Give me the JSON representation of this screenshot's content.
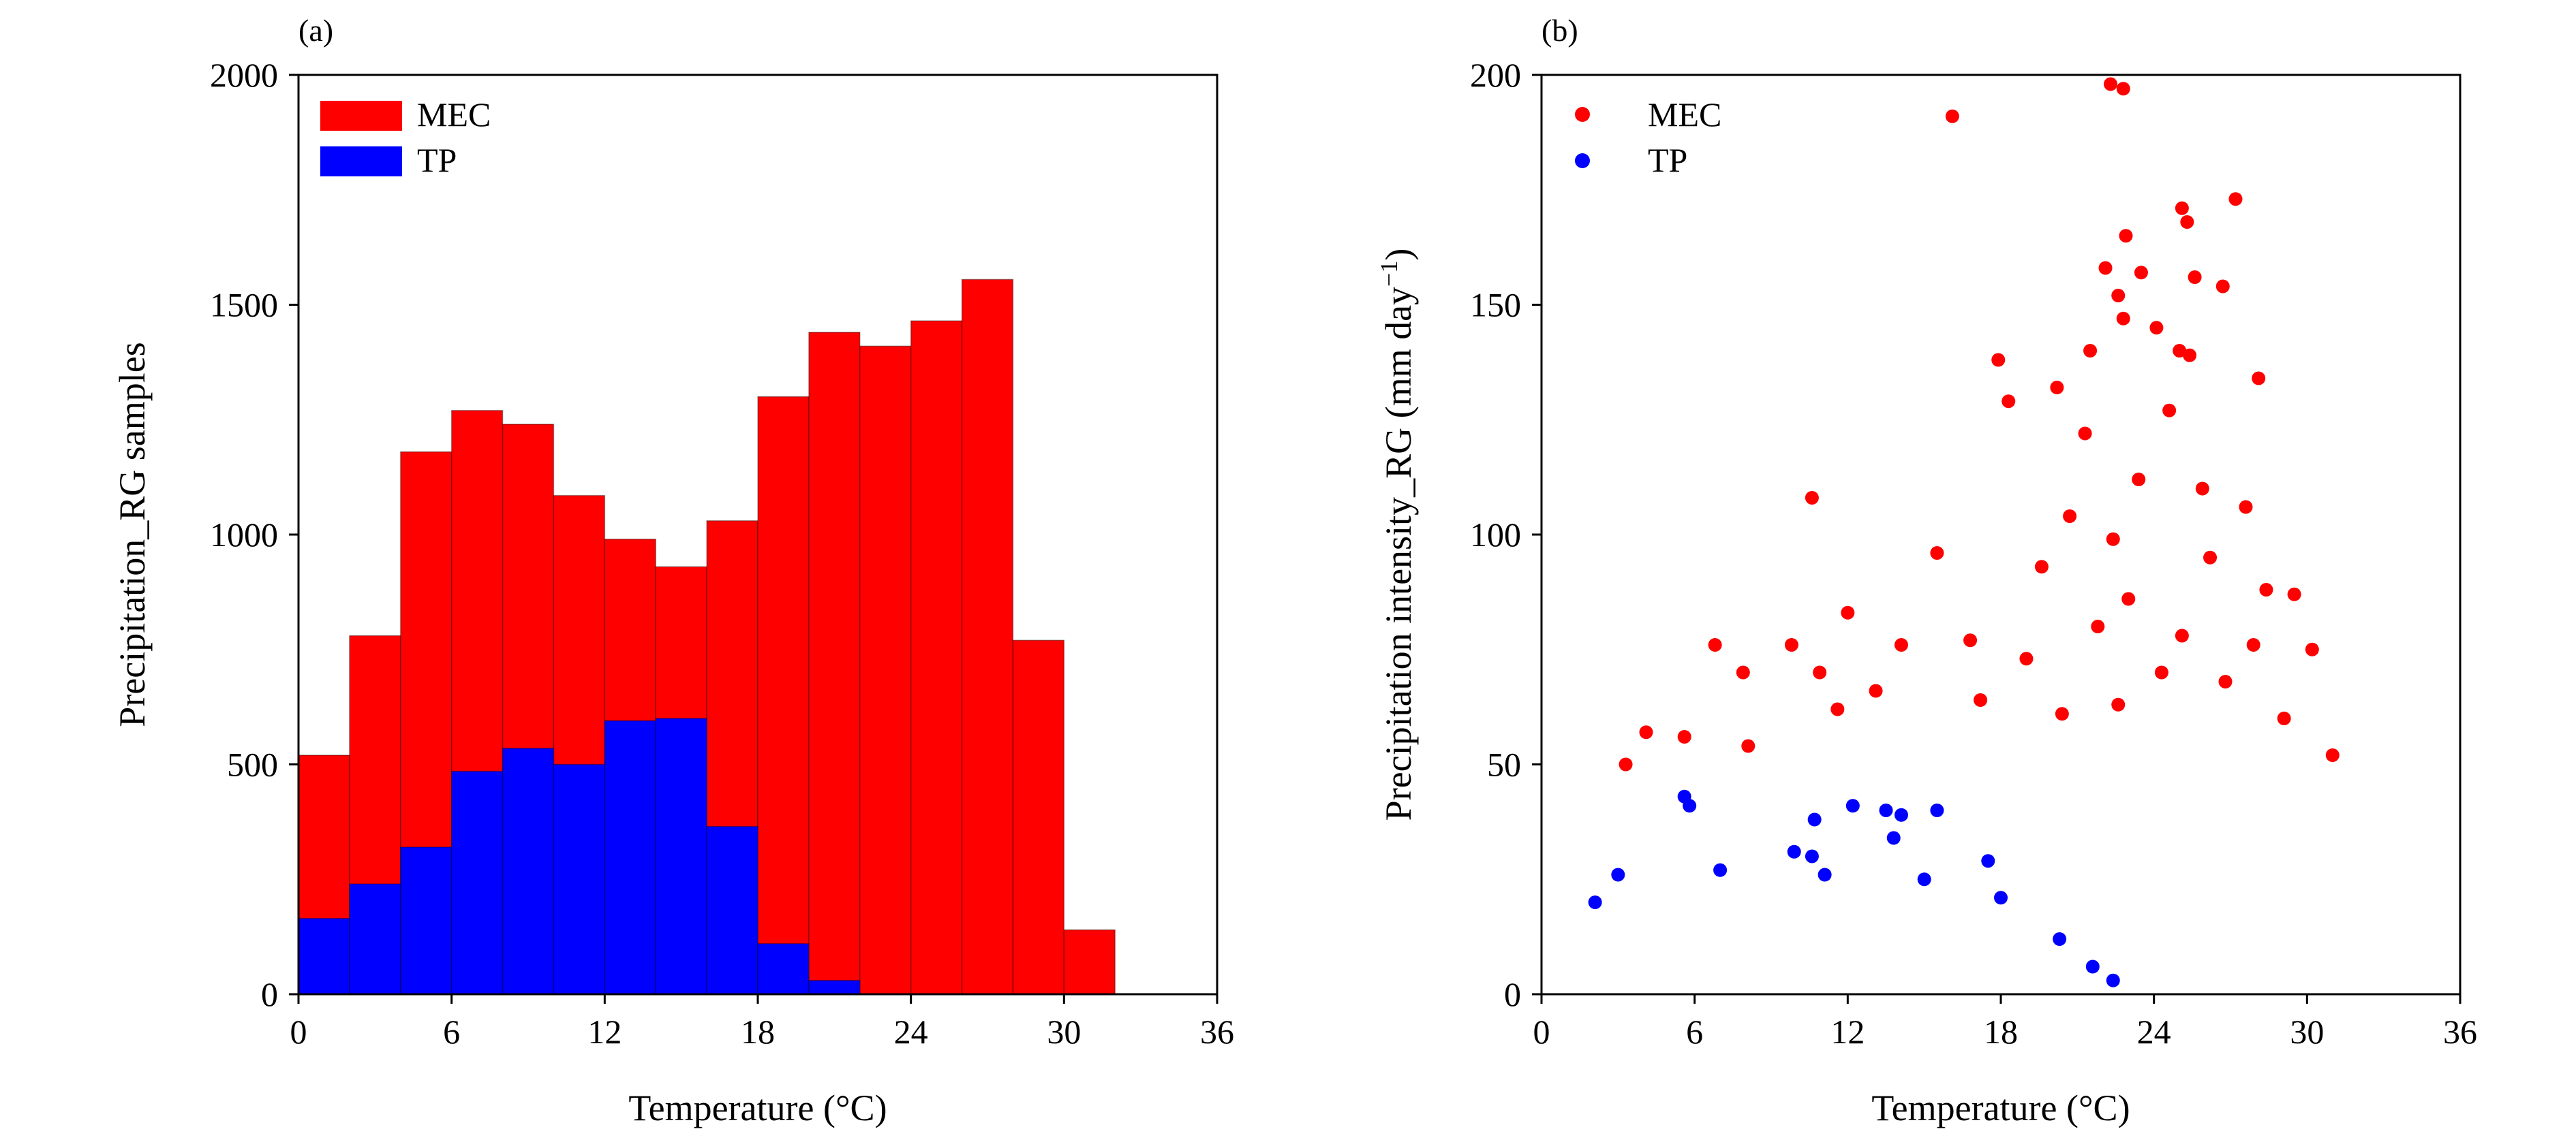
{
  "chart_data": [
    {
      "type": "bar",
      "panel_label": "(a)",
      "xlabel": "Temperature (°C)",
      "ylabel": "Precipitation_RG samples",
      "xlim": [
        0,
        36
      ],
      "ylim": [
        0,
        2000
      ],
      "xticks": [
        0,
        6,
        12,
        18,
        24,
        30,
        36
      ],
      "yticks": [
        0,
        500,
        1000,
        1500,
        2000
      ],
      "bin_width": 2,
      "bin_starts": [
        0,
        2,
        4,
        6,
        8,
        10,
        12,
        14,
        16,
        18,
        20,
        22,
        24,
        26,
        28,
        30
      ],
      "series": [
        {
          "name": "MEC",
          "color": "#ff0000",
          "values": [
            520,
            780,
            1180,
            1270,
            1240,
            1085,
            990,
            930,
            1030,
            1300,
            1440,
            1410,
            1465,
            1555,
            770,
            140
          ]
        },
        {
          "name": "TP",
          "color": "#0000ff",
          "values": [
            165,
            240,
            320,
            485,
            535,
            500,
            595,
            600,
            365,
            110,
            30,
            0,
            0,
            0,
            0,
            0
          ]
        }
      ],
      "legend": "top-left",
      "grid": false
    },
    {
      "type": "scatter",
      "panel_label": "(b)",
      "xlabel": "Temperature (°C)",
      "ylabel_main": "Precipitation intensity_RG (mm day",
      "ylabel_sup": "−1",
      "ylabel_tail": ")",
      "xlim": [
        0,
        36
      ],
      "ylim": [
        0,
        200
      ],
      "xticks": [
        0,
        6,
        12,
        18,
        24,
        30,
        36
      ],
      "yticks": [
        0,
        50,
        100,
        150,
        200
      ],
      "legend": "top-left",
      "grid": false,
      "series": [
        {
          "name": "MEC",
          "color": "#ff0000",
          "points": [
            [
              22.3,
              198
            ],
            [
              22.8,
              197
            ],
            [
              16.1,
              191
            ],
            [
              27.2,
              173
            ],
            [
              25.1,
              171
            ],
            [
              25.3,
              168
            ],
            [
              22.9,
              165
            ],
            [
              22.1,
              158
            ],
            [
              23.5,
              157
            ],
            [
              25.6,
              156
            ],
            [
              22.6,
              152
            ],
            [
              26.7,
              154
            ],
            [
              22.8,
              147
            ],
            [
              24.1,
              145
            ],
            [
              25.0,
              140
            ],
            [
              21.5,
              140
            ],
            [
              25.4,
              139
            ],
            [
              20.2,
              132
            ],
            [
              17.9,
              138
            ],
            [
              28.1,
              134
            ],
            [
              18.3,
              129
            ],
            [
              24.6,
              127
            ],
            [
              21.3,
              122
            ],
            [
              10.6,
              108
            ],
            [
              15.5,
              96
            ],
            [
              23.4,
              112
            ],
            [
              25.9,
              110
            ],
            [
              27.6,
              106
            ],
            [
              20.7,
              104
            ],
            [
              22.4,
              99
            ],
            [
              26.2,
              95
            ],
            [
              19.6,
              93
            ],
            [
              28.4,
              88
            ],
            [
              29.5,
              87
            ],
            [
              23.0,
              86
            ],
            [
              21.8,
              80
            ],
            [
              25.1,
              78
            ],
            [
              27.9,
              76
            ],
            [
              30.2,
              75
            ],
            [
              12.0,
              83
            ],
            [
              16.8,
              77
            ],
            [
              6.8,
              76
            ],
            [
              9.8,
              76
            ],
            [
              14.1,
              76
            ],
            [
              19.0,
              73
            ],
            [
              10.9,
              70
            ],
            [
              7.9,
              70
            ],
            [
              24.3,
              70
            ],
            [
              26.8,
              68
            ],
            [
              13.1,
              66
            ],
            [
              17.2,
              64
            ],
            [
              22.6,
              63
            ],
            [
              20.4,
              61
            ],
            [
              4.1,
              57
            ],
            [
              5.6,
              56
            ],
            [
              3.3,
              50
            ],
            [
              8.1,
              54
            ],
            [
              11.6,
              62
            ],
            [
              29.1,
              60
            ],
            [
              31.0,
              52
            ]
          ]
        },
        {
          "name": "TP",
          "color": "#0000ff",
          "points": [
            [
              5.6,
              43
            ],
            [
              5.8,
              41
            ],
            [
              12.2,
              41
            ],
            [
              13.5,
              40
            ],
            [
              15.5,
              40
            ],
            [
              14.1,
              39
            ],
            [
              10.7,
              38
            ],
            [
              13.8,
              34
            ],
            [
              9.9,
              31
            ],
            [
              10.6,
              30
            ],
            [
              17.5,
              29
            ],
            [
              3.0,
              26
            ],
            [
              7.0,
              27
            ],
            [
              11.1,
              26
            ],
            [
              15.0,
              25
            ],
            [
              2.1,
              20
            ],
            [
              18.0,
              21
            ],
            [
              20.3,
              12
            ],
            [
              21.6,
              6
            ],
            [
              22.4,
              3
            ]
          ]
        }
      ]
    }
  ]
}
